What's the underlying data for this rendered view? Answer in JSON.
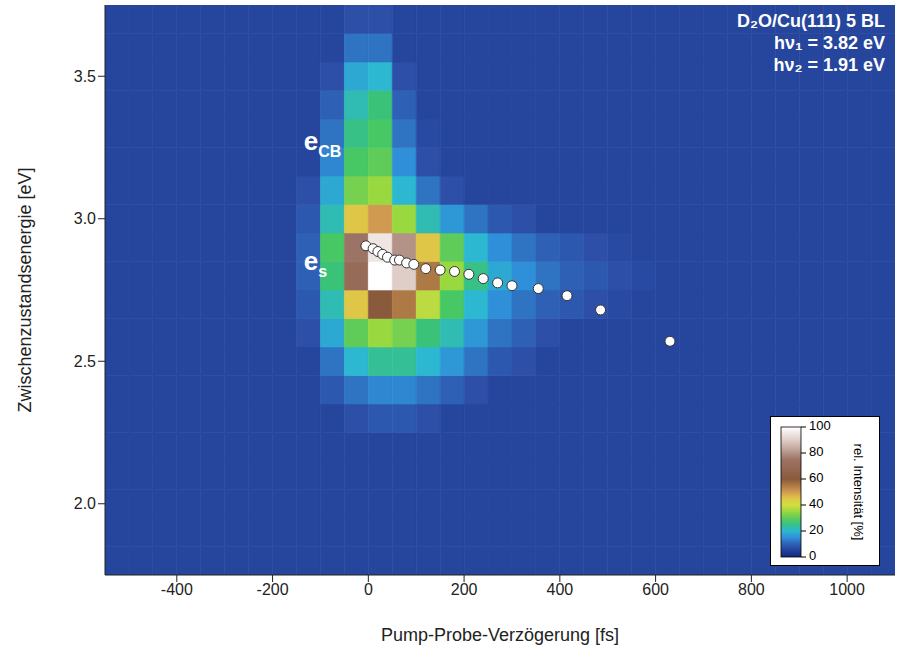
{
  "chart_data": {
    "type": "heatmap",
    "title_lines": [
      "D₂O/Cu(111) 5 BL",
      "hν₁ = 3.82 eV",
      "hν₂ = 1.91 eV"
    ],
    "x_label": "Pump-Probe-Verzögerung [fs]",
    "y_label": "Zwischenzustandsenergie [eV]",
    "xlim": [
      -550,
      1100
    ],
    "ylim": [
      1.75,
      3.75
    ],
    "xticks": [
      -400,
      -200,
      0,
      200,
      400,
      600,
      800,
      1000
    ],
    "yticks": [
      {
        "value": 2,
        "label": "2.0"
      },
      {
        "value": 2.5,
        "label": "2.5"
      },
      {
        "value": 3,
        "label": "3.0"
      },
      {
        "value": 3.5,
        "label": "3.5"
      }
    ],
    "grid": false,
    "heatmap": {
      "x_bins": [
        -550,
        -500,
        -450,
        -400,
        -350,
        -300,
        -250,
        -200,
        -150,
        -100,
        -50,
        0,
        50,
        100,
        150,
        200,
        250,
        300,
        350,
        400,
        450,
        500,
        550,
        600,
        650,
        700,
        750,
        800,
        850,
        900,
        950,
        1000,
        1050,
        1100
      ],
      "y_bins": [
        1.75,
        1.85,
        1.95,
        2.05,
        2.15,
        2.25,
        2.35,
        2.45,
        2.55,
        2.65,
        2.75,
        2.85,
        2.95,
        3.05,
        3.15,
        3.25,
        3.35,
        3.45,
        3.55,
        3.65,
        3.75
      ],
      "values": [
        [
          6,
          6,
          6,
          6,
          6,
          6,
          6,
          6,
          6,
          6,
          6,
          6,
          6,
          6,
          6,
          6,
          6,
          6,
          6,
          6,
          6,
          6,
          6,
          6,
          6,
          6,
          6,
          6,
          6,
          6,
          6,
          6,
          6
        ],
        [
          6,
          6,
          6,
          6,
          6,
          6,
          6,
          6,
          6,
          6,
          6,
          6,
          6,
          6,
          6,
          6,
          6,
          6,
          6,
          6,
          6,
          6,
          6,
          6,
          6,
          6,
          6,
          6,
          6,
          6,
          6,
          6,
          6
        ],
        [
          6,
          6,
          6,
          6,
          6,
          6,
          6,
          6,
          6,
          6,
          6,
          6,
          6,
          6,
          6,
          6,
          6,
          6,
          6,
          6,
          6,
          6,
          6,
          6,
          6,
          6,
          6,
          6,
          6,
          6,
          6,
          6,
          6
        ],
        [
          6,
          6,
          6,
          6,
          6,
          6,
          6,
          6,
          6,
          6,
          6,
          6,
          6,
          6,
          6,
          6,
          6,
          6,
          6,
          6,
          6,
          6,
          6,
          6,
          6,
          6,
          6,
          6,
          6,
          6,
          6,
          6,
          6
        ],
        [
          6,
          6,
          6,
          6,
          6,
          6,
          6,
          6,
          6,
          6,
          6,
          6,
          6,
          6,
          6,
          6,
          6,
          6,
          6,
          6,
          6,
          6,
          6,
          6,
          6,
          6,
          6,
          6,
          6,
          6,
          6,
          6,
          6
        ],
        [
          6,
          6,
          6,
          6,
          6,
          6,
          6,
          6,
          6,
          6,
          8,
          9,
          9,
          8,
          6,
          6,
          6,
          6,
          6,
          6,
          6,
          6,
          6,
          6,
          6,
          6,
          6,
          6,
          6,
          6,
          6,
          6,
          6
        ],
        [
          6,
          6,
          6,
          6,
          6,
          6,
          6,
          6,
          6,
          9,
          12,
          14,
          14,
          12,
          10,
          8,
          6,
          6,
          6,
          6,
          6,
          6,
          6,
          6,
          6,
          6,
          6,
          6,
          6,
          6,
          6,
          6,
          6
        ],
        [
          6,
          6,
          6,
          6,
          6,
          6,
          6,
          6,
          6,
          12,
          20,
          24,
          24,
          20,
          16,
          12,
          9,
          8,
          6,
          6,
          6,
          6,
          6,
          6,
          6,
          6,
          6,
          6,
          6,
          6,
          6,
          6,
          6
        ],
        [
          6,
          6,
          6,
          6,
          6,
          6,
          6,
          6,
          8,
          18,
          30,
          35,
          32,
          26,
          22,
          16,
          12,
          10,
          8,
          6,
          6,
          6,
          6,
          6,
          6,
          6,
          6,
          6,
          6,
          6,
          6,
          6,
          6
        ],
        [
          6,
          6,
          6,
          6,
          6,
          6,
          6,
          6,
          9,
          22,
          45,
          60,
          55,
          38,
          28,
          20,
          15,
          12,
          10,
          9,
          8,
          7,
          6,
          6,
          6,
          6,
          6,
          6,
          6,
          6,
          6,
          6,
          6
        ],
        [
          6,
          6,
          6,
          6,
          6,
          6,
          6,
          6,
          10,
          26,
          70,
          100,
          90,
          55,
          35,
          25,
          18,
          15,
          12,
          10,
          9,
          8,
          7,
          6,
          6,
          6,
          6,
          6,
          6,
          6,
          6,
          6,
          6
        ],
        [
          6,
          6,
          6,
          6,
          6,
          6,
          6,
          6,
          10,
          28,
          75,
          95,
          80,
          45,
          30,
          20,
          15,
          12,
          10,
          9,
          8,
          7,
          6,
          6,
          6,
          6,
          6,
          6,
          6,
          6,
          6,
          6,
          6
        ],
        [
          6,
          6,
          6,
          6,
          6,
          6,
          6,
          6,
          9,
          22,
          45,
          50,
          35,
          22,
          16,
          12,
          9,
          8,
          6,
          6,
          6,
          6,
          6,
          6,
          6,
          6,
          6,
          6,
          6,
          6,
          6,
          6,
          6
        ],
        [
          6,
          6,
          6,
          6,
          6,
          6,
          6,
          6,
          8,
          18,
          32,
          35,
          20,
          12,
          8,
          6,
          6,
          6,
          6,
          6,
          6,
          6,
          6,
          6,
          6,
          6,
          6,
          6,
          6,
          6,
          6,
          6,
          6
        ],
        [
          6,
          6,
          6,
          6,
          6,
          6,
          6,
          6,
          6,
          14,
          28,
          30,
          15,
          8,
          6,
          6,
          6,
          6,
          6,
          6,
          6,
          6,
          6,
          6,
          6,
          6,
          6,
          6,
          6,
          6,
          6,
          6,
          6
        ],
        [
          6,
          6,
          6,
          6,
          6,
          6,
          6,
          6,
          6,
          12,
          25,
          28,
          12,
          7,
          6,
          6,
          6,
          6,
          6,
          6,
          6,
          6,
          6,
          6,
          6,
          6,
          6,
          6,
          6,
          6,
          6,
          6,
          6
        ],
        [
          6,
          6,
          6,
          6,
          6,
          6,
          6,
          6,
          6,
          10,
          22,
          26,
          10,
          6,
          6,
          6,
          6,
          6,
          6,
          6,
          6,
          6,
          6,
          6,
          6,
          6,
          6,
          6,
          6,
          6,
          6,
          6,
          6
        ],
        [
          6,
          6,
          6,
          6,
          6,
          6,
          6,
          6,
          6,
          8,
          18,
          20,
          8,
          6,
          6,
          6,
          6,
          6,
          6,
          6,
          6,
          6,
          6,
          6,
          6,
          6,
          6,
          6,
          6,
          6,
          6,
          6,
          6
        ],
        [
          6,
          6,
          6,
          6,
          6,
          6,
          6,
          6,
          6,
          6,
          12,
          12,
          6,
          6,
          6,
          6,
          6,
          6,
          6,
          6,
          6,
          6,
          6,
          6,
          6,
          6,
          6,
          6,
          6,
          6,
          6,
          6,
          6
        ],
        [
          6,
          6,
          6,
          6,
          6,
          6,
          6,
          6,
          6,
          6,
          8,
          8,
          6,
          6,
          6,
          6,
          6,
          6,
          6,
          6,
          6,
          6,
          6,
          6,
          6,
          6,
          6,
          6,
          6,
          6,
          6,
          6,
          6
        ]
      ]
    },
    "colorbar": {
      "range": [
        0,
        100
      ],
      "ticks": [
        0,
        20,
        40,
        60,
        80,
        100
      ],
      "label": "rel. Intensität [%]"
    },
    "points": {
      "x": [
        -5,
        10,
        20,
        30,
        40,
        55,
        65,
        80,
        95,
        120,
        150,
        180,
        210,
        240,
        270,
        300,
        355,
        415,
        485,
        630
      ],
      "y": [
        2.905,
        2.895,
        2.885,
        2.875,
        2.865,
        2.855,
        2.855,
        2.845,
        2.84,
        2.825,
        2.82,
        2.815,
        2.805,
        2.79,
        2.775,
        2.765,
        2.755,
        2.73,
        2.68,
        2.57
      ],
      "color": "#ffffff",
      "marker": "circle"
    },
    "annotations": [
      {
        "text": "e",
        "sub": "CB",
        "x": -135,
        "y": 3.24
      },
      {
        "text": "e",
        "sub": "s",
        "x": -135,
        "y": 2.82
      }
    ]
  }
}
